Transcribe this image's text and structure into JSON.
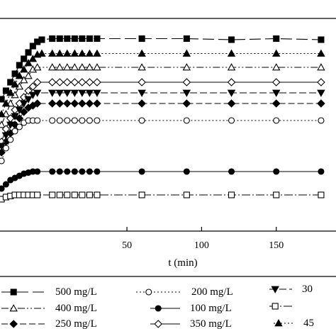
{
  "chart_data": {
    "type": "line",
    "xlabel": "t (min)",
    "ylabel": "",
    "title": "",
    "xlim": [
      -35,
      190
    ],
    "ylim": [
      0,
      1
    ],
    "x_ticks": [
      50,
      100,
      150
    ],
    "grid": false,
    "legend_position": "bottom",
    "series": [
      {
        "name": "500 mg/L",
        "marker": "square-filled",
        "dash": "16,6",
        "x": [
          -34,
          -31,
          -28,
          -25,
          -22,
          -19,
          -16,
          -13,
          -10,
          -7,
          0,
          5,
          10,
          15,
          20,
          25,
          30,
          60,
          90,
          120,
          150,
          180
        ],
        "y": [
          0.62,
          0.66,
          0.7,
          0.74,
          0.78,
          0.81,
          0.84,
          0.87,
          0.89,
          0.9,
          0.905,
          0.905,
          0.905,
          0.905,
          0.905,
          0.905,
          0.905,
          0.905,
          0.905,
          0.9,
          0.905,
          0.9
        ]
      },
      {
        "name": "400 mg/L",
        "marker": "triangle-open",
        "dash": "10,3,2,3,2,3",
        "x": [
          -34,
          -31,
          -28,
          -25,
          -22,
          -19,
          -16,
          -13,
          -10,
          0,
          5,
          10,
          15,
          20,
          25,
          30,
          60,
          90,
          120,
          150,
          180
        ],
        "y": [
          0.5,
          0.55,
          0.6,
          0.64,
          0.68,
          0.71,
          0.73,
          0.76,
          0.77,
          0.77,
          0.77,
          0.77,
          0.77,
          0.77,
          0.77,
          0.77,
          0.77,
          0.77,
          0.77,
          0.77,
          0.77
        ]
      },
      {
        "name": "250 mg/L",
        "marker": "diamond-filled",
        "dash": "9,4",
        "x": [
          -34,
          -31,
          -28,
          -25,
          -22,
          -19,
          -16,
          -13,
          -10,
          0,
          5,
          10,
          15,
          20,
          25,
          30,
          60,
          90,
          120,
          150,
          180
        ],
        "y": [
          0.37,
          0.42,
          0.46,
          0.5,
          0.53,
          0.56,
          0.58,
          0.59,
          0.6,
          0.6,
          0.6,
          0.6,
          0.6,
          0.6,
          0.6,
          0.6,
          0.6,
          0.6,
          0.6,
          0.6,
          0.6
        ]
      },
      {
        "name": "200 mg/L",
        "marker": "circle-open",
        "dash": "2,3",
        "x": [
          -34,
          -31,
          -28,
          -25,
          -22,
          -19,
          -16,
          -13,
          -10,
          0,
          5,
          10,
          15,
          20,
          25,
          30,
          60,
          90,
          120,
          150,
          180
        ],
        "y": [
          0.33,
          0.39,
          0.43,
          0.47,
          0.49,
          0.51,
          0.52,
          0.52,
          0.52,
          0.52,
          0.52,
          0.52,
          0.52,
          0.52,
          0.52,
          0.52,
          0.52,
          0.52,
          0.52,
          0.52,
          0.52
        ]
      },
      {
        "name": "100 mg/L",
        "marker": "circle-filled",
        "dash": "",
        "x": [
          -34,
          -31,
          -28,
          -25,
          -22,
          -19,
          -16,
          -13,
          -10,
          0,
          5,
          10,
          15,
          20,
          25,
          30,
          60,
          90,
          120,
          150,
          180
        ],
        "y": [
          0.2,
          0.22,
          0.24,
          0.25,
          0.26,
          0.27,
          0.275,
          0.28,
          0.28,
          0.28,
          0.28,
          0.28,
          0.28,
          0.28,
          0.28,
          0.28,
          0.28,
          0.28,
          0.28,
          0.28,
          0.28
        ]
      },
      {
        "name": "350 mg/L",
        "marker": "diamond-open",
        "dash": "",
        "x": [
          -34,
          -31,
          -28,
          -25,
          -22,
          -19,
          -16,
          -13,
          -10,
          0,
          5,
          10,
          15,
          20,
          25,
          30,
          60,
          90,
          120,
          150,
          180
        ],
        "y": [
          0.42,
          0.48,
          0.53,
          0.57,
          0.6,
          0.63,
          0.66,
          0.68,
          0.7,
          0.7,
          0.7,
          0.7,
          0.7,
          0.7,
          0.7,
          0.7,
          0.7,
          0.7,
          0.7,
          0.7,
          0.7
        ]
      },
      {
        "name": "30",
        "marker": "triangle-down-filled",
        "dash": "10,4",
        "x": [
          -34,
          -31,
          -28,
          -25,
          -22,
          -19,
          -16,
          -13,
          -10,
          0,
          5,
          10,
          15,
          20,
          25,
          30,
          60,
          90,
          120,
          150,
          180
        ],
        "y": [
          0.4,
          0.45,
          0.5,
          0.54,
          0.57,
          0.6,
          0.62,
          0.64,
          0.65,
          0.65,
          0.65,
          0.65,
          0.65,
          0.65,
          0.65,
          0.65,
          0.65,
          0.65,
          0.65,
          0.65,
          0.65
        ]
      },
      {
        "name": "",
        "marker": "square-open",
        "dash": "12,3,2,3",
        "x": [
          -34,
          -31,
          -28,
          -25,
          -22,
          -19,
          -16,
          -13,
          -10,
          0,
          5,
          10,
          15,
          20,
          25,
          30,
          60,
          90,
          120,
          150,
          180
        ],
        "y": [
          0.15,
          0.16,
          0.165,
          0.17,
          0.17,
          0.17,
          0.17,
          0.17,
          0.17,
          0.17,
          0.17,
          0.17,
          0.17,
          0.17,
          0.17,
          0.17,
          0.17,
          0.17,
          0.17,
          0.17,
          0.17
        ]
      },
      {
        "name": "45",
        "marker": "triangle-filled",
        "dash": "2,3",
        "x": [
          -34,
          -31,
          -28,
          -25,
          -22,
          -19,
          -16,
          -13,
          -10,
          -7,
          0,
          5,
          10,
          15,
          20,
          25,
          30,
          60,
          90,
          120,
          150,
          180
        ],
        "y": [
          0.55,
          0.6,
          0.65,
          0.69,
          0.73,
          0.76,
          0.79,
          0.81,
          0.83,
          0.835,
          0.835,
          0.835,
          0.835,
          0.835,
          0.835,
          0.835,
          0.835,
          0.835,
          0.835,
          0.835,
          0.835,
          0.835
        ]
      }
    ]
  }
}
